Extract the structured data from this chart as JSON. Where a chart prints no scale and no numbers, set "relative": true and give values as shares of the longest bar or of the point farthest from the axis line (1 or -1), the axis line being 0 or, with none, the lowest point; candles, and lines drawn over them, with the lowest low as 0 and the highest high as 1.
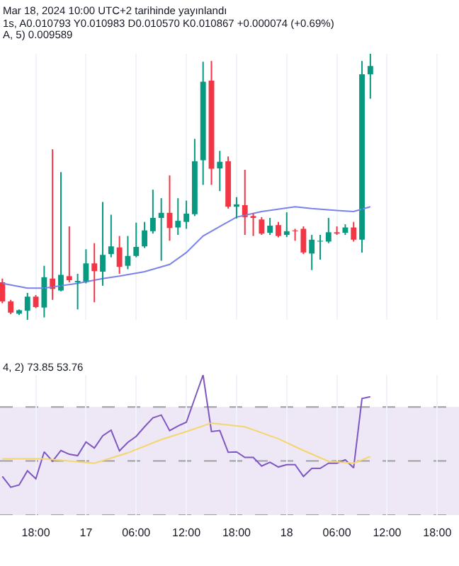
{
  "chart_data": [
    {
      "type": "candlestick",
      "relative": true,
      "grid": "x",
      "tick_labels": false,
      "annotations": [
        "Mar 18, 2024 10:00 UTC+2 tarihinde yayınlandı",
        "1s, A0.010793 Y0.010983 D0.010570 K0.010867 +0.000074 (+0.69%)",
        "A, 5) 0.009589"
      ],
      "xlim": [
        "2024-03-16T13:43",
        "2024-03-18T20:36"
      ],
      "xticks": [
        {
          "value": "2024-03-16T18:00",
          "label": null
        },
        {
          "value": "2024-03-17T00:00",
          "label": null
        },
        {
          "value": "2024-03-17T06:00",
          "label": null
        },
        {
          "value": "2024-03-17T12:00",
          "label": null
        },
        {
          "value": "2024-03-17T18:00",
          "label": null
        },
        {
          "value": "2024-03-18T00:00",
          "label": null
        },
        {
          "value": "2024-03-18T06:00",
          "label": null
        },
        {
          "value": "2024-03-18T12:00",
          "label": null
        },
        {
          "value": "2024-03-18T18:00",
          "label": null
        }
      ],
      "x": [
        "2024-03-16T14:00",
        "2024-03-16T15:00",
        "2024-03-16T16:00",
        "2024-03-16T17:00",
        "2024-03-16T18:00",
        "2024-03-16T19:00",
        "2024-03-16T20:00",
        "2024-03-16T21:00",
        "2024-03-16T22:00",
        "2024-03-16T23:00",
        "2024-03-17T00:00",
        "2024-03-17T01:00",
        "2024-03-17T02:00",
        "2024-03-17T03:00",
        "2024-03-17T04:00",
        "2024-03-17T05:00",
        "2024-03-17T06:00",
        "2024-03-17T07:00",
        "2024-03-17T08:00",
        "2024-03-17T09:00",
        "2024-03-17T10:00",
        "2024-03-17T11:00",
        "2024-03-17T12:00",
        "2024-03-17T13:00",
        "2024-03-17T14:00",
        "2024-03-17T15:00",
        "2024-03-17T16:00",
        "2024-03-17T17:00",
        "2024-03-17T18:00",
        "2024-03-17T19:00",
        "2024-03-17T20:00",
        "2024-03-17T21:00",
        "2024-03-17T22:00",
        "2024-03-17T23:00",
        "2024-03-18T00:00",
        "2024-03-18T01:00",
        "2024-03-18T02:00",
        "2024-03-18T03:00",
        "2024-03-18T04:00",
        "2024-03-18T05:00",
        "2024-03-18T06:00",
        "2024-03-18T07:00",
        "2024-03-18T08:00",
        "2024-03-18T09:00",
        "2024-03-18T10:00"
      ],
      "ohlc": [
        [
          0.141,
          0.155,
          0.062,
          0.069
        ],
        [
          0.069,
          0.075,
          0.021,
          0.027
        ],
        [
          0.023,
          0.039,
          0.018,
          0.036
        ],
        [
          0.034,
          0.101,
          0,
          0.087
        ],
        [
          0.087,
          0.093,
          0.044,
          0.048
        ],
        [
          0.046,
          0.203,
          0.009,
          0.16
        ],
        [
          0.155,
          0.641,
          0.075,
          0.116
        ],
        [
          0.11,
          0.555,
          0.107,
          0.169
        ],
        [
          0.164,
          0.351,
          0.141,
          0.149
        ],
        [
          0.141,
          0.173,
          0.039,
          0.146
        ],
        [
          0.142,
          0.265,
          0.137,
          0.212
        ],
        [
          0.212,
          0.288,
          0.066,
          0.183
        ],
        [
          0.181,
          0.443,
          0.128,
          0.244
        ],
        [
          0.247,
          0.395,
          0.235,
          0.276
        ],
        [
          0.272,
          0.315,
          0.173,
          0.199
        ],
        [
          0.203,
          0.315,
          0.19,
          0.24
        ],
        [
          0.24,
          0.365,
          0.235,
          0.274
        ],
        [
          0.276,
          0.368,
          0.27,
          0.336
        ],
        [
          0.333,
          0.489,
          0.324,
          0.383
        ],
        [
          0.383,
          0.457,
          0.222,
          0.402
        ],
        [
          0.402,
          0.543,
          0.297,
          0.345
        ],
        [
          0.347,
          0.457,
          0.319,
          0.372
        ],
        [
          0.368,
          0.448,
          0.342,
          0.399
        ],
        [
          0.397,
          0.68,
          0.39,
          0.596
        ],
        [
          0.6,
          0.97,
          0.507,
          0.895
        ],
        [
          0.899,
          0.973,
          0.507,
          0.568
        ],
        [
          0.569,
          0.635,
          0.484,
          0.594
        ],
        [
          0.596,
          0.614,
          0.418,
          0.425
        ],
        [
          0.425,
          0.461,
          0.381,
          0.434
        ],
        [
          0.431,
          0.564,
          0.319,
          0.386
        ],
        [
          0.39,
          0.4,
          0.315,
          0.383
        ],
        [
          0.377,
          0.386,
          0.319,
          0.324
        ],
        [
          0.327,
          0.383,
          0.319,
          0.354
        ],
        [
          0.356,
          0.368,
          0.31,
          0.315
        ],
        [
          0.319,
          0.404,
          0.311,
          0.333
        ],
        [
          0.336,
          0.342,
          0.297,
          0.333
        ],
        [
          0.342,
          0.351,
          0.247,
          0.253
        ],
        [
          0.249,
          0.319,
          0.187,
          0.301
        ],
        [
          0.294,
          0.319,
          0.226,
          0.297
        ],
        [
          0.294,
          0.383,
          0.288,
          0.329
        ],
        [
          0.329,
          0.351,
          0.319,
          0.324
        ],
        [
          0.327,
          0.359,
          0.319,
          0.347
        ],
        [
          0.347,
          0.368,
          0.294,
          0.301
        ],
        [
          0.301,
          0.973,
          0.253,
          0.923
        ],
        [
          0.923,
          1,
          0.831,
          0.954
        ]
      ],
      "colors": [
        "#f23645",
        "#f23645",
        "#089981",
        "#089981",
        "#f23645",
        "#089981",
        "#f23645",
        "#089981",
        "#f23645",
        "#089981",
        "#089981",
        "#f23645",
        "#089981",
        "#089981",
        "#f23645",
        "#089981",
        "#089981",
        "#089981",
        "#089981",
        "#089981",
        "#f23645",
        "#089981",
        "#089981",
        "#089981",
        "#089981",
        "#f23645",
        "#089981",
        "#f23645",
        "#089981",
        "#f23645",
        "#f23645",
        "#f23645",
        "#089981",
        "#f23645",
        "#089981",
        "#f23645",
        "#f23645",
        "#089981",
        "#089981",
        "#089981",
        "#f23645",
        "#089981",
        "#f23645",
        "#089981",
        "#089981"
      ],
      "series": [
        {
          "type": "line",
          "color": "#7b83eb",
          "x": [
            "2024-03-16T14:00",
            "2024-03-16T17:00",
            "2024-03-16T19:00",
            "2024-03-16T21:00",
            "2024-03-16T23:00",
            "2024-03-17T02:00",
            "2024-03-17T04:00",
            "2024-03-17T07:00",
            "2024-03-17T10:00",
            "2024-03-17T12:00",
            "2024-03-17T14:00",
            "2024-03-17T16:00",
            "2024-03-17T18:00",
            "2024-03-17T21:00",
            "2024-03-18T01:00",
            "2024-03-18T03:00",
            "2024-03-18T06:00",
            "2024-03-18T08:00",
            "2024-03-18T10:00"
          ],
          "values": [
            0.137,
            0.119,
            0.119,
            0.128,
            0.137,
            0.155,
            0.164,
            0.181,
            0.208,
            0.253,
            0.315,
            0.351,
            0.386,
            0.407,
            0.425,
            0.418,
            0.411,
            0.407,
            0.425
          ]
        }
      ]
    },
    {
      "type": "line",
      "relative": true,
      "grid": "x",
      "tick_labels": "x",
      "annotations": [
        "4, 2) 73.85 53.76"
      ],
      "xlim": [
        "2024-03-16T13:43",
        "2024-03-18T20:36"
      ],
      "xticks": [
        {
          "value": "2024-03-16T18:00",
          "label": "18:00"
        },
        {
          "value": "2024-03-17T00:00",
          "label": "17"
        },
        {
          "value": "2024-03-17T06:00",
          "label": "06:00"
        },
        {
          "value": "2024-03-17T12:00",
          "label": "12:00"
        },
        {
          "value": "2024-03-17T18:00",
          "label": "18:00"
        },
        {
          "value": "2024-03-18T00:00",
          "label": "18"
        },
        {
          "value": "2024-03-18T06:00",
          "label": "06:00"
        },
        {
          "value": "2024-03-18T12:00",
          "label": "12:00"
        },
        {
          "value": "2024-03-18T18:00",
          "label": "18:00"
        }
      ],
      "x": [
        "2024-03-16T14:00",
        "2024-03-16T15:00",
        "2024-03-16T16:00",
        "2024-03-16T17:00",
        "2024-03-16T18:00",
        "2024-03-16T19:00",
        "2024-03-16T20:00",
        "2024-03-16T21:00",
        "2024-03-16T22:00",
        "2024-03-16T23:00",
        "2024-03-17T00:00",
        "2024-03-17T01:00",
        "2024-03-17T02:00",
        "2024-03-17T03:00",
        "2024-03-17T04:00",
        "2024-03-17T05:00",
        "2024-03-17T06:00",
        "2024-03-17T07:00",
        "2024-03-17T08:00",
        "2024-03-17T09:00",
        "2024-03-17T10:00",
        "2024-03-17T11:00",
        "2024-03-17T12:00",
        "2024-03-17T13:00",
        "2024-03-17T14:00",
        "2024-03-17T15:00",
        "2024-03-17T16:00",
        "2024-03-17T17:00",
        "2024-03-17T18:00",
        "2024-03-17T19:00",
        "2024-03-17T20:00",
        "2024-03-17T21:00",
        "2024-03-17T22:00",
        "2024-03-17T23:00",
        "2024-03-18T00:00",
        "2024-03-18T01:00",
        "2024-03-18T02:00",
        "2024-03-18T03:00",
        "2024-03-18T04:00",
        "2024-03-18T05:00",
        "2024-03-18T06:00",
        "2024-03-18T07:00",
        "2024-03-18T08:00",
        "2024-03-18T09:00",
        "2024-03-18T10:00"
      ],
      "bands": [
        {
          "axis": "y",
          "from": 0,
          "to": 0.771,
          "color": "#ede7f6"
        }
      ],
      "ref_lines": [
        {
          "axis": "y",
          "value": 0.771,
          "color": "#9e9e9e",
          "line_style": "dashed"
        },
        {
          "axis": "y",
          "value": 0.387,
          "color": "#9e9e9e",
          "line_style": "dashed"
        },
        {
          "axis": "y",
          "value": 0,
          "color": "#9e9e9e",
          "line_style": "dashed"
        }
      ],
      "series": [
        {
          "color": "#7e57c2",
          "values": [
            0.276,
            0.199,
            0.215,
            0.316,
            0.259,
            0.451,
            0.384,
            0.461,
            0.434,
            0.424,
            0.522,
            0.478,
            0.566,
            0.606,
            0.458,
            0.519,
            0.562,
            0.63,
            0.694,
            0.714,
            0.603,
            0.636,
            0.663,
            0.832,
            1,
            0.596,
            0.603,
            0.448,
            0.451,
            0.411,
            0.411,
            0.35,
            0.377,
            0.343,
            0.36,
            0.36,
            0.276,
            0.333,
            0.333,
            0.37,
            0.37,
            0.394,
            0.337,
            0.832,
            0.845
          ]
        },
        {
          "color": "#f5d66b",
          "x": [
            "2024-03-16T14:00",
            "2024-03-16T19:00",
            "2024-03-17T01:00",
            "2024-03-17T05:00",
            "2024-03-17T09:00",
            "2024-03-17T12:00",
            "2024-03-17T15:00",
            "2024-03-17T19:00",
            "2024-03-17T23:00",
            "2024-03-18T02:00",
            "2024-03-18T05:00",
            "2024-03-18T08:00",
            "2024-03-18T10:00"
          ],
          "values": [
            0.401,
            0.401,
            0.37,
            0.444,
            0.539,
            0.596,
            0.657,
            0.63,
            0.545,
            0.461,
            0.384,
            0.37,
            0.418
          ]
        }
      ]
    }
  ]
}
